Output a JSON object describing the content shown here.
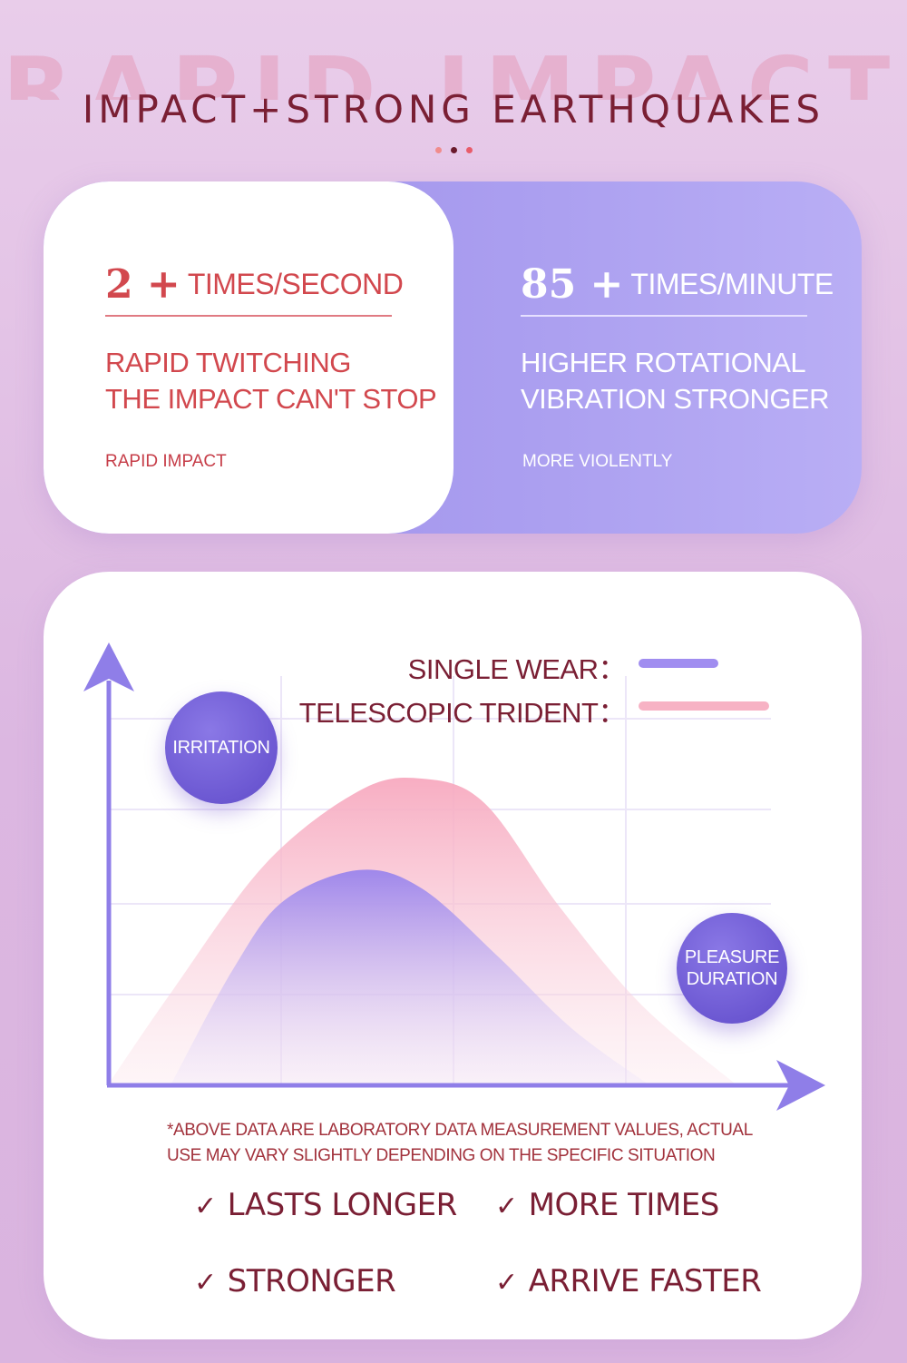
{
  "header": {
    "background_word": "RAPID IMPACT",
    "title": "IMPACT+STRONG EARTHQUAKES"
  },
  "stats": {
    "left": {
      "number": "2 +",
      "unit": "TIMES/SECOND",
      "line1": "RAPID TWITCHING",
      "line2": "THE IMPACT CAN'T STOP",
      "tag": "RAPID IMPACT"
    },
    "right": {
      "number": "85 +",
      "unit": "TIMES/MINUTE",
      "line1": "HIGHER ROTATIONAL",
      "line2": "VIBRATION STRONGER",
      "tag": "MORE VIOLENTLY"
    }
  },
  "chart_data": {
    "type": "area",
    "title": "",
    "xlabel": "",
    "ylabel": "",
    "series": [
      {
        "name": "TELESCOPIC TRIDENT",
        "color": "#f7b2c4",
        "points": [
          [
            0,
            0
          ],
          [
            0.1,
            0.3
          ],
          [
            0.25,
            0.72
          ],
          [
            0.4,
            0.96
          ],
          [
            0.5,
            1.0
          ],
          [
            0.6,
            0.92
          ],
          [
            0.72,
            0.58
          ],
          [
            0.85,
            0.26
          ],
          [
            1.0,
            0.0
          ]
        ]
      },
      {
        "name": "SINGLE WEAR",
        "color": "#a08df0",
        "points": [
          [
            0.1,
            0
          ],
          [
            0.2,
            0.38
          ],
          [
            0.28,
            0.6
          ],
          [
            0.4,
            0.7
          ],
          [
            0.5,
            0.64
          ],
          [
            0.62,
            0.42
          ],
          [
            0.74,
            0.18
          ],
          [
            0.86,
            0.0
          ]
        ]
      }
    ],
    "legend": [
      {
        "label": "SINGLE WEAR：",
        "color": "#a08df0"
      },
      {
        "label": "TELESCOPIC TRIDENT：",
        "color": "#f7b2c4"
      }
    ],
    "annotations": {
      "y_axis_bubble": "IRRITATION",
      "x_axis_bubble_line1": "PLEASURE",
      "x_axis_bubble_line2": "DURATION"
    },
    "grid": true,
    "legend_position": "top-right"
  },
  "note": {
    "line1": "*ABOVE DATA ARE LABORATORY DATA MEASUREMENT VALUES, ACTUAL",
    "line2": "USE MAY VARY SLIGHTLY DEPENDING ON THE SPECIFIC SITUATION"
  },
  "features": {
    "check": "✓",
    "items": [
      "LASTS LONGER",
      "MORE TIMES",
      "STRONGER",
      "ARRIVE FASTER"
    ]
  },
  "colors": {
    "accent_red": "#d2484e",
    "dark_red": "#7a1f34",
    "purple": "#9b8ce8",
    "pink": "#f7b2c4"
  }
}
